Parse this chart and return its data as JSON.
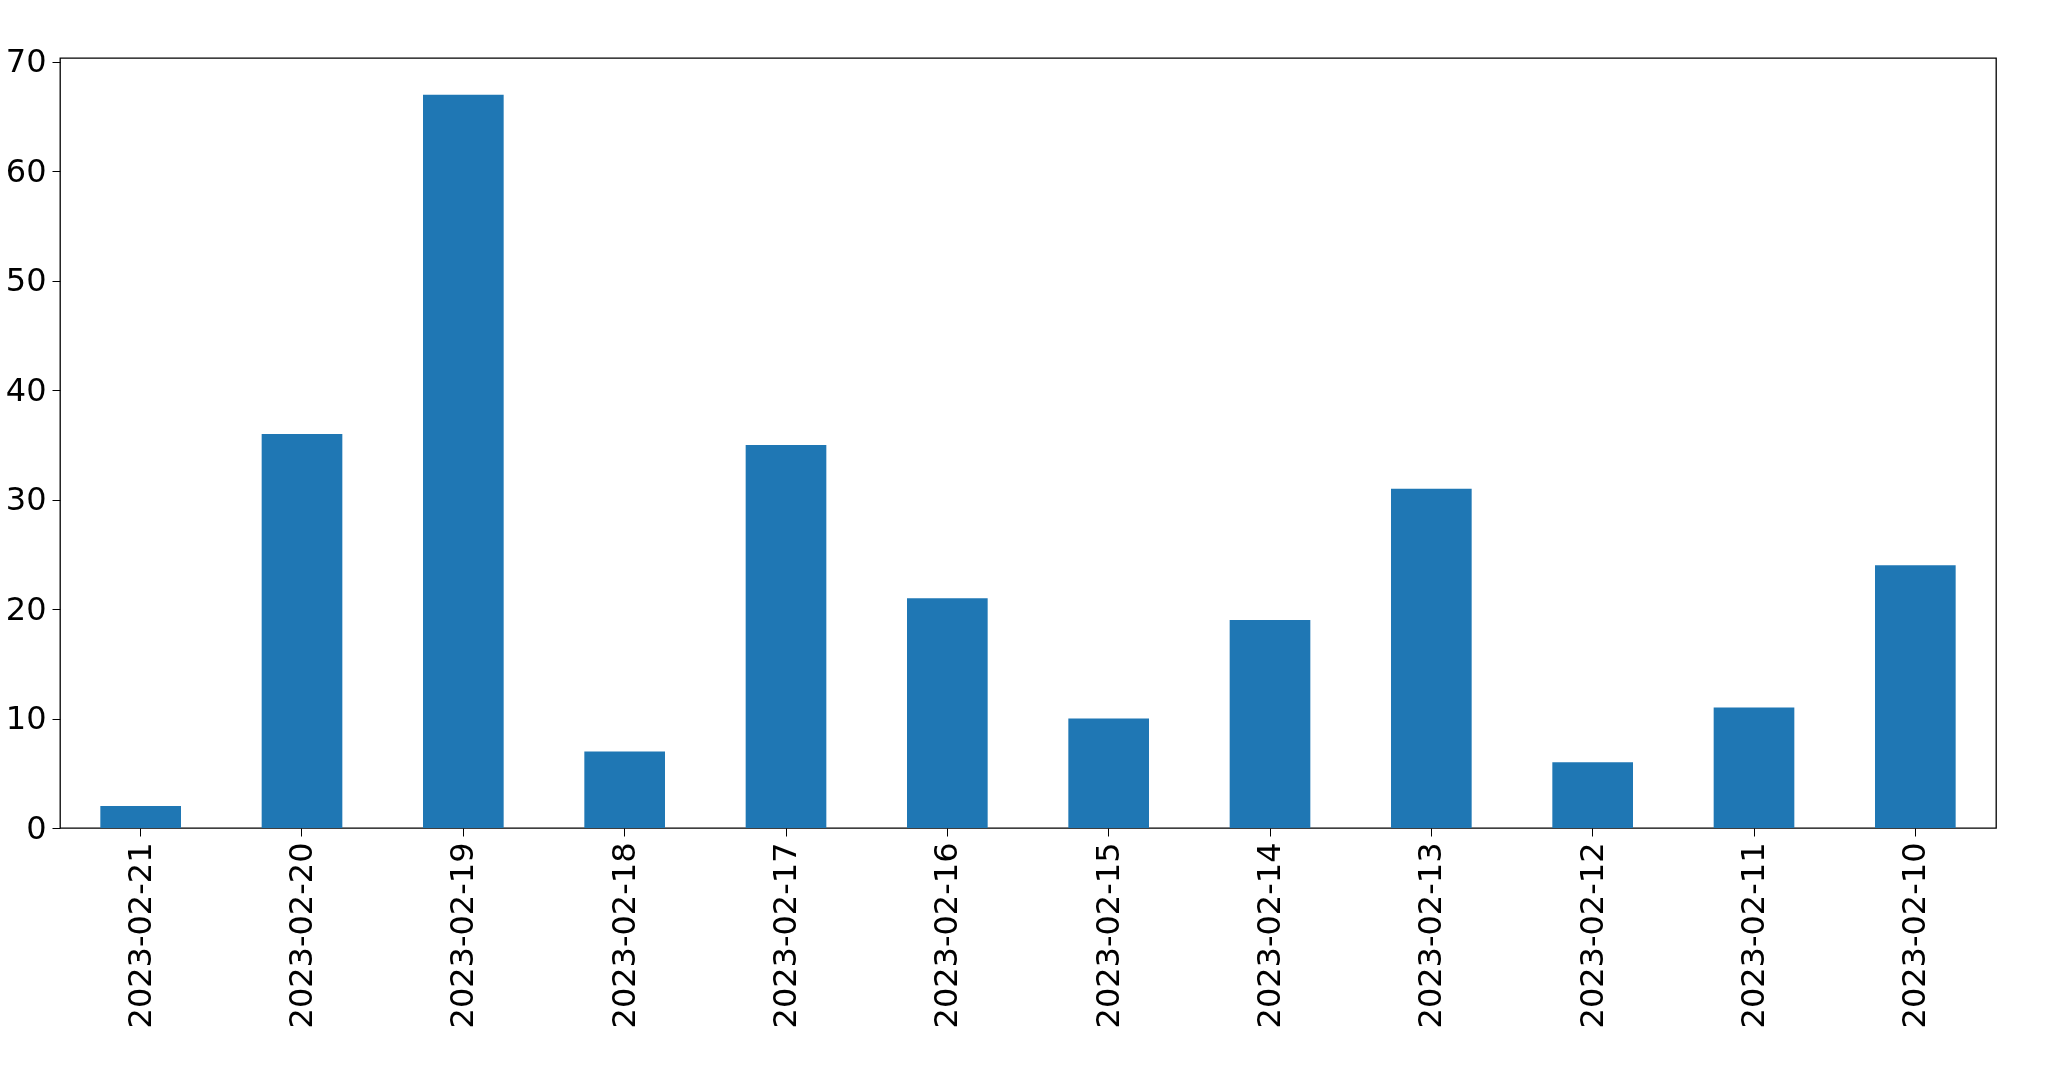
{
  "chart_data": {
    "type": "bar",
    "categories": [
      "2023-02-21",
      "2023-02-20",
      "2023-02-19",
      "2023-02-18",
      "2023-02-17",
      "2023-02-16",
      "2023-02-15",
      "2023-02-14",
      "2023-02-13",
      "2023-02-12",
      "2023-02-11",
      "2023-02-10"
    ],
    "values": [
      2,
      36,
      67,
      7,
      35,
      21,
      10,
      19,
      31,
      6,
      11,
      24
    ],
    "color": "#1f77b4",
    "ylim": [
      0,
      70.35
    ],
    "yticks": [
      0,
      10,
      20,
      30,
      40,
      50,
      60,
      70
    ],
    "grid": false
  }
}
